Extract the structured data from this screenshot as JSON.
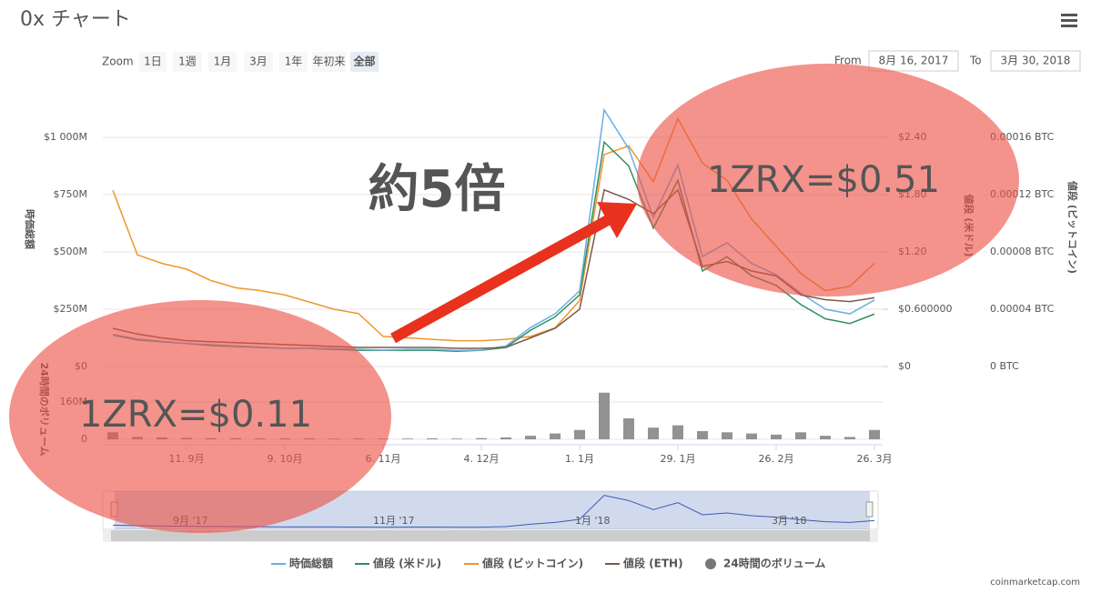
{
  "header": {
    "title": "0x チャート",
    "credit": "coinmarketcap.com"
  },
  "toolbar": {
    "zoom_label": "Zoom",
    "buttons": [
      "1日",
      "1週",
      "1月",
      "3月",
      "1年",
      "年初来",
      "全部"
    ],
    "selected": "全部",
    "from_label": "From",
    "from": "8月 16, 2017",
    "to_label": "To",
    "to": "3月 30, 2018"
  },
  "navigator": {
    "labels": [
      "9月 '17",
      "11月 '17",
      "1月 '18",
      "3月 '18"
    ]
  },
  "chart_data": {
    "type": "line",
    "annotations": [
      "約5倍",
      "1ZRX=$0.11",
      "1ZRX=$0.51"
    ],
    "categories": [
      null,
      null,
      null,
      "11. 9月",
      null,
      null,
      null,
      "9. 10月",
      null,
      null,
      null,
      "6. 11月",
      null,
      null,
      null,
      "4. 12月",
      null,
      null,
      null,
      "1. 1月",
      null,
      null,
      null,
      "29. 1月",
      null,
      null,
      null,
      "26. 2月",
      null,
      null,
      null,
      "26. 3月"
    ],
    "ylabel": "時価総額",
    "ylim": [
      0,
      1200
    ],
    "yticks": [
      {
        "value": 0,
        "label": "$0"
      },
      {
        "value": 250,
        "label": "$250M"
      },
      {
        "value": 500,
        "label": "$500M"
      },
      {
        "value": 750,
        "label": "$750M"
      },
      {
        "value": 1000,
        "label": "$1 000M"
      }
    ],
    "y2label": "値段 (米ドル)",
    "y2lim": [
      0,
      2.88
    ],
    "y2ticks": [
      {
        "value": 0,
        "label": "$0"
      },
      {
        "value": 0.6,
        "label": "$0.600000"
      },
      {
        "value": 1.2,
        "label": "$1.20"
      },
      {
        "value": 1.8,
        "label": "$1.80"
      },
      {
        "value": 2.4,
        "label": "$2.40"
      }
    ],
    "y3label": "値段 (ビットコイン)",
    "y3lim": [
      0,
      0.000192
    ],
    "y3ticks": [
      {
        "value": 0,
        "label": "0 BTC"
      },
      {
        "value": 4e-05,
        "label": "0.00004 BTC"
      },
      {
        "value": 8e-05,
        "label": "0.00008 BTC"
      },
      {
        "value": 0.00012,
        "label": "0.00012 BTC"
      },
      {
        "value": 0.00016,
        "label": "0.00016 BTC"
      }
    ],
    "y4label": "24時間のボリューム",
    "y4lim": [
      0,
      280
    ],
    "y4ticks": [
      0,
      {
        "value": 160,
        "label": "160M"
      }
    ],
    "grid": true,
    "series": [
      {
        "name": "時価総額",
        "color": "#6aaee3",
        "axis": "y",
        "values": [
          140,
          120,
          110,
          100,
          95,
          90,
          85,
          80,
          80,
          78,
          75,
          72,
          75,
          75,
          70,
          72,
          90,
          170,
          230,
          330,
          1120,
          950,
          650,
          880,
          480,
          540,
          450,
          400,
          320,
          250,
          230,
          290
        ]
      },
      {
        "name": "値段 (米ドル)",
        "color": "#2f8f5f",
        "axis": "y2",
        "values": [
          0.33,
          0.28,
          0.26,
          0.24,
          0.22,
          0.21,
          0.2,
          0.19,
          0.19,
          0.18,
          0.17,
          0.17,
          0.17,
          0.17,
          0.16,
          0.17,
          0.2,
          0.38,
          0.52,
          0.75,
          2.35,
          2.1,
          1.45,
          1.95,
          1.0,
          1.15,
          0.95,
          0.85,
          0.65,
          0.5,
          0.45,
          0.55
        ]
      },
      {
        "name": "値段 (ビットコイン)",
        "color": "#f0962e",
        "axis": "y3",
        "values": [
          0.000123,
          7.8e-05,
          7.2e-05,
          6.8e-05,
          6e-05,
          5.5e-05,
          5.3e-05,
          5e-05,
          4.5e-05,
          4e-05,
          3.7e-05,
          2.1e-05,
          2e-05,
          1.9e-05,
          1.8e-05,
          1.8e-05,
          1.9e-05,
          2.1e-05,
          2.7e-05,
          4.6e-05,
          0.000148,
          0.000154,
          0.000129,
          0.000173,
          0.000142,
          0.00013,
          0.000103,
          8.4e-05,
          6.5e-05,
          5.3e-05,
          5.6e-05,
          7.2e-05
        ]
      },
      {
        "name": "値段 (ETH)",
        "color": "#7a5a4a",
        "axis": "y2",
        "values": [
          0.4,
          0.34,
          0.3,
          0.27,
          0.26,
          0.25,
          0.24,
          0.23,
          0.22,
          0.21,
          0.2,
          0.2,
          0.2,
          0.2,
          0.19,
          0.19,
          0.2,
          0.3,
          0.4,
          0.6,
          1.85,
          1.75,
          1.6,
          1.85,
          1.05,
          1.1,
          1.0,
          0.95,
          0.75,
          0.7,
          0.68,
          0.72
        ]
      },
      {
        "name": "24時間のボリューム",
        "color": "#777777",
        "axis": "y4",
        "type": "column",
        "values": [
          30,
          10,
          8,
          6,
          5,
          5,
          4,
          4,
          4,
          3,
          4,
          3,
          3,
          4,
          3,
          5,
          8,
          15,
          25,
          40,
          200,
          90,
          50,
          60,
          35,
          30,
          25,
          20,
          30,
          15,
          10,
          40
        ]
      }
    ]
  }
}
